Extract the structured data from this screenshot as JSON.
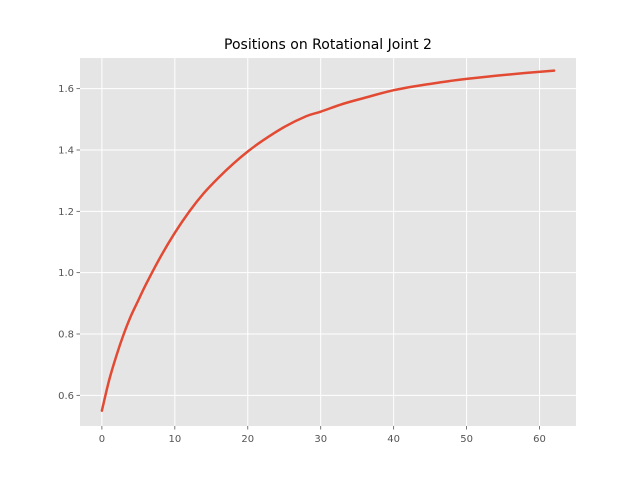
{
  "chart_data": {
    "type": "line",
    "title": "Positions on Rotational Joint 2",
    "xlabel": "",
    "ylabel": "",
    "xlim": [
      -3,
      65
    ],
    "ylim": [
      0.5,
      1.7
    ],
    "xticks": [
      0,
      10,
      20,
      30,
      40,
      50,
      60
    ],
    "yticks": [
      0.6,
      0.8,
      1.0,
      1.2,
      1.4,
      1.6
    ],
    "ytick_labels": [
      "0.6",
      "0.8",
      "1.0",
      "1.2",
      "1.4",
      "1.6"
    ],
    "grid": true,
    "legend": "none",
    "colors": {
      "background": "#e5e5e5",
      "grid": "#ffffff",
      "line": "#e24a33"
    },
    "series": [
      {
        "x": [
          0,
          1,
          2,
          3,
          4,
          5,
          6,
          8,
          10,
          12,
          14,
          16,
          18,
          20,
          22,
          25,
          28,
          30,
          33,
          36,
          40,
          44,
          48,
          50,
          54,
          58,
          62
        ],
        "values": [
          0.55,
          0.65,
          0.73,
          0.8,
          0.86,
          0.91,
          0.96,
          1.05,
          1.13,
          1.2,
          1.26,
          1.31,
          1.355,
          1.395,
          1.43,
          1.475,
          1.51,
          1.525,
          1.55,
          1.57,
          1.595,
          1.612,
          1.626,
          1.632,
          1.642,
          1.651,
          1.659
        ]
      }
    ]
  }
}
